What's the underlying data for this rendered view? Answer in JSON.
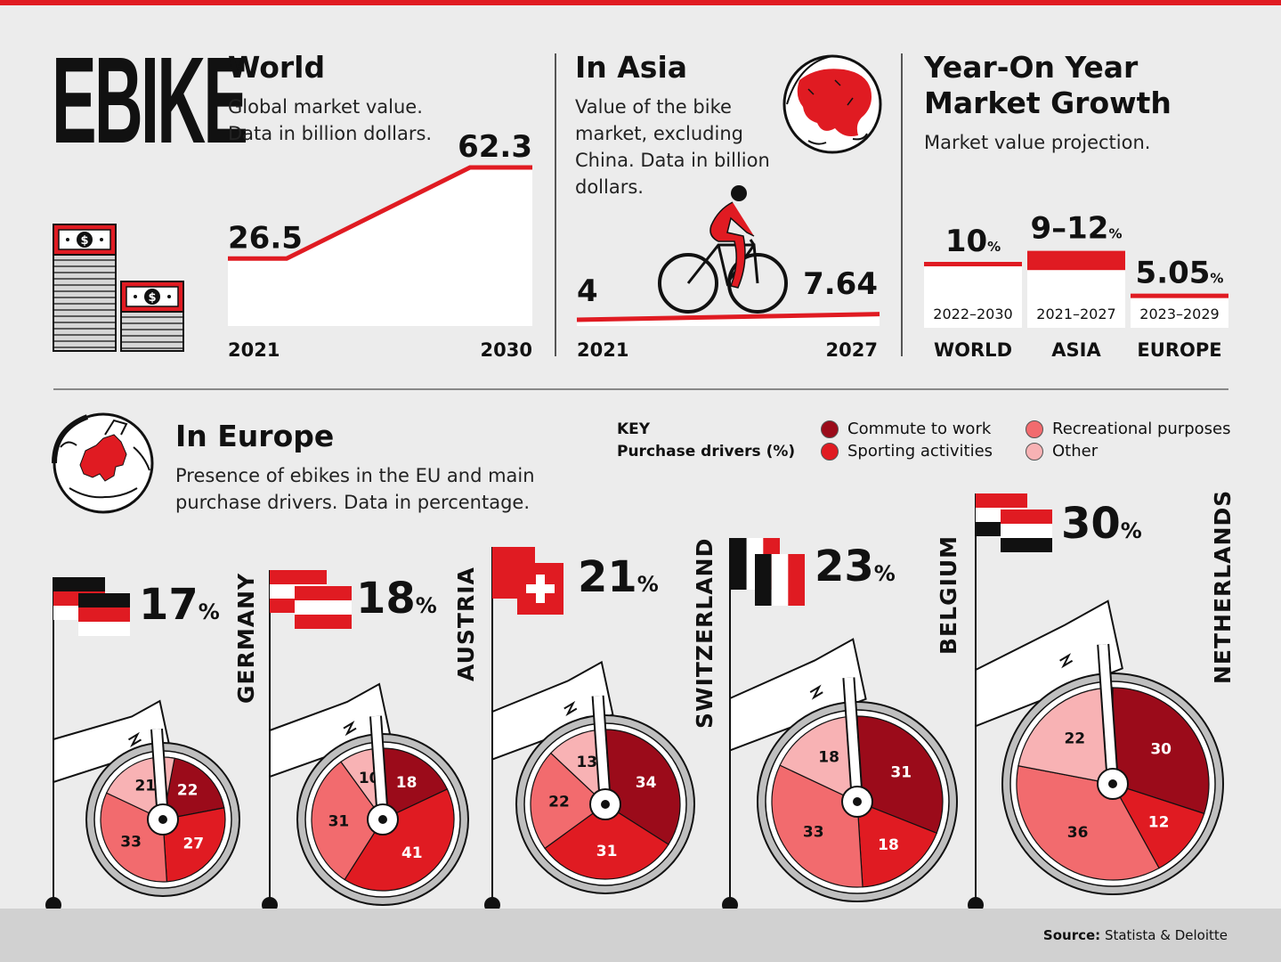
{
  "logo": "EBIKE",
  "world": {
    "title": "World",
    "subtitle_1": "Global market value.",
    "subtitle_2": "Data in billion dollars."
  },
  "asia": {
    "title": "In Asia",
    "subtitle_1": "Value of the bike",
    "subtitle_2": "market, excluding",
    "subtitle_3": "China. Data in billion",
    "subtitle_4": "dollars."
  },
  "yoy": {
    "title_1": "Year-On Year",
    "title_2": "Market Growth",
    "subtitle": "Market value projection."
  },
  "europe": {
    "title": "In Europe",
    "subtitle_1": "Presence of ebikes in the EU and main",
    "subtitle_2": "purchase drivers. Data in percentage."
  },
  "key": {
    "title": "KEY",
    "subtitle": "Purchase drivers (%)",
    "items": [
      {
        "label": "Commute to work",
        "color": "#9b0b1a"
      },
      {
        "label": "Sporting activities",
        "color": "#e01b22"
      },
      {
        "label": "Recreational purposes",
        "color": "#f26b6e"
      },
      {
        "label": "Other",
        "color": "#f8b2b4"
      }
    ]
  },
  "source": {
    "label": "Source:",
    "text": "Statista & Deloitte"
  },
  "colors": {
    "accent": "#e01b22",
    "dark_red": "#9b0b1a",
    "mid_red": "#f26b6e",
    "light_red": "#f8b2b4"
  },
  "chart_data": [
    {
      "type": "area",
      "title": "World",
      "x": [
        "2021",
        "2030"
      ],
      "values": [
        26.5,
        62.3
      ],
      "value_labels": [
        "26.5",
        "62.3"
      ]
    },
    {
      "type": "line",
      "title": "In Asia",
      "x": [
        "2021",
        "2027"
      ],
      "values": [
        4,
        7.64
      ],
      "value_labels": [
        "4",
        "7.64"
      ]
    },
    {
      "type": "bar",
      "title": "Year-On Year Market Growth",
      "categories": [
        "WORLD",
        "ASIA",
        "EUROPE"
      ],
      "periods": [
        "2022–2030",
        "2021–2027",
        "2023–2029"
      ],
      "value_labels": [
        "10",
        "9–12",
        "5.05"
      ],
      "values": [
        10,
        [
          9,
          12
        ],
        5.05
      ],
      "unit": "%"
    },
    {
      "type": "pie",
      "title": "In Europe",
      "slice_order": [
        "Commute to work",
        "Sporting activities",
        "Recreational purposes",
        "Other"
      ],
      "countries": [
        {
          "name": "GERMANY",
          "presence": 17,
          "values": [
            22,
            27,
            33,
            21
          ]
        },
        {
          "name": "AUSTRIA",
          "presence": 18,
          "values": [
            18,
            41,
            31,
            10
          ]
        },
        {
          "name": "SWITZERLAND",
          "presence": 21,
          "values": [
            34,
            31,
            22,
            13
          ]
        },
        {
          "name": "BELGIUM",
          "presence": 23,
          "values": [
            31,
            18,
            33,
            18
          ]
        },
        {
          "name": "NETHERLANDS",
          "presence": 30,
          "values": [
            30,
            12,
            36,
            22
          ]
        }
      ],
      "unit": "%"
    }
  ]
}
